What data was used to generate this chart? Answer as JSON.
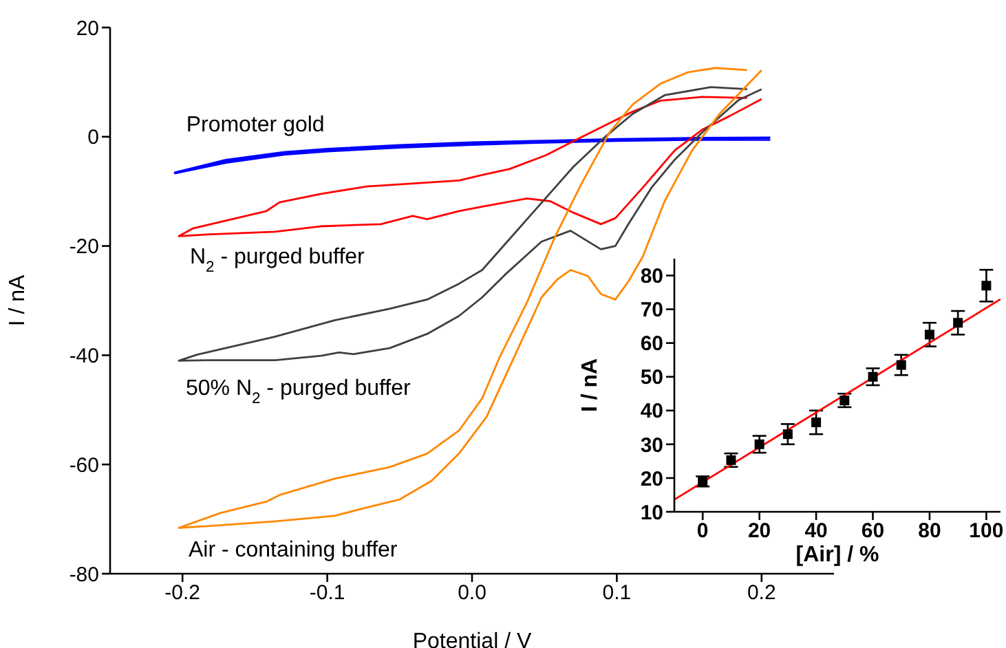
{
  "chart_data": [
    {
      "type": "line",
      "xlabel": "Potential / V",
      "ylabel": "I / nA",
      "xlim": [
        -0.25,
        0.25
      ],
      "ylim": [
        -80,
        20
      ],
      "xticks": [
        -0.2,
        -0.1,
        {
          "value": 0,
          "label": "0.0"
        },
        0.1,
        0.2
      ],
      "yticks": [
        -80,
        -60,
        -40,
        -20,
        0,
        20
      ],
      "series": [
        {
          "name": "Promoter gold",
          "color": "#0000ff",
          "x": [
            0.206,
            0.15,
            0.1,
            0.05,
            0,
            -0.05,
            -0.1,
            -0.13,
            -0.17,
            -0.205,
            -0.17,
            -0.13,
            -0.1,
            -0.05,
            0,
            0.05,
            0.1,
            0.15,
            0.206
          ],
          "values": [
            -0.2,
            -0.3,
            -0.5,
            -0.8,
            -1.1,
            -1.6,
            -2.3,
            -2.9,
            -4.3,
            -6.6,
            -4.7,
            -3.2,
            -2.6,
            -1.9,
            -1.4,
            -1.0,
            -0.7,
            -0.5,
            -0.5
          ]
        },
        {
          "name": "N$_{2}$ - purged buffer",
          "color": "#ff0000",
          "x": [
            0.19,
            0.159,
            0.13,
            0.111,
            0.095,
            0.07,
            0.051,
            0.026,
            0.007,
            -0.009,
            -0.073,
            -0.105,
            -0.133,
            -0.142,
            -0.193,
            -0.2025,
            -0.183,
            -0.136,
            -0.105,
            -0.063,
            -0.041,
            -0.031,
            -0.009,
            0.007,
            0.038,
            0.054,
            0.07,
            0.089,
            0.099,
            0.118,
            0.14,
            0.159,
            0.178,
            0.2
          ],
          "values": [
            7.1,
            7.3,
            6.6,
            4.6,
            2.5,
            -0.8,
            -3.4,
            -5.9,
            -7,
            -8,
            -9.1,
            -10.5,
            -12,
            -13.6,
            -16.8,
            -18.2,
            -17.9,
            -17.4,
            -16.4,
            -16,
            -14.5,
            -15.1,
            -13.6,
            -12.8,
            -11.3,
            -11.8,
            -13.9,
            -16,
            -14.9,
            -9.3,
            -2.5,
            1.3,
            3.8,
            6.9
          ]
        },
        {
          "name": "50% N$_{2}$ - purged buffer",
          "color": "#404040",
          "x": [
            0.19,
            0.165,
            0.133,
            0.111,
            0.092,
            0.07,
            0.038,
            0.007,
            -0.009,
            -0.031,
            -0.057,
            -0.095,
            -0.136,
            -0.19,
            -0.2025,
            -0.183,
            -0.136,
            -0.104,
            -0.092,
            -0.082,
            -0.057,
            -0.031,
            -0.009,
            0.007,
            0.023,
            0.048,
            0.068,
            0.089,
            0.099,
            0.108,
            0.124,
            0.14,
            0.159,
            0.184,
            0.2
          ],
          "values": [
            8.7,
            9.1,
            7.6,
            4.2,
            0,
            -5.5,
            -15.1,
            -24.4,
            -26.9,
            -29.8,
            -31.5,
            -33.6,
            -36.6,
            -39.9,
            -41,
            -40.9,
            -40.9,
            -40.1,
            -39.5,
            -39.8,
            -38.7,
            -36.1,
            -32.8,
            -29.4,
            -25.2,
            -19.2,
            -17.2,
            -20.6,
            -20,
            -16,
            -9.3,
            -4.2,
            0.8,
            6.7,
            8.7
          ]
        },
        {
          "name": "Air - containing buffer",
          "color": "#ff8800",
          "x": [
            0.19,
            0.168,
            0.149,
            0.13,
            0.111,
            0.095,
            0.076,
            0.057,
            0.038,
            0.019,
            0.007,
            -0.009,
            -0.031,
            -0.057,
            -0.095,
            -0.133,
            -0.142,
            -0.174,
            -0.2025,
            -0.183,
            -0.136,
            -0.095,
            -0.073,
            -0.05,
            -0.028,
            -0.009,
            0.01,
            0.029,
            0.048,
            0.059,
            0.068,
            0.08,
            0.089,
            0.099,
            0.108,
            0.118,
            0.133,
            0.152,
            0.171,
            0.2
          ],
          "values": [
            12.2,
            12.6,
            11.8,
            9.7,
            5.9,
            0.8,
            -8.4,
            -18.5,
            -30.3,
            -40.4,
            -47.9,
            -53.8,
            -58,
            -60.5,
            -62.6,
            -65.6,
            -66.8,
            -68.9,
            -71.6,
            -71.3,
            -70.4,
            -69.4,
            -67.9,
            -66.4,
            -63,
            -58,
            -51.3,
            -40.4,
            -29.4,
            -26.1,
            -24.4,
            -25.5,
            -28.8,
            -29.8,
            -26.5,
            -21.9,
            -11.8,
            -2.5,
            4.2,
            12.2
          ]
        }
      ]
    },
    {
      "type": "scatter",
      "xlabel": "[Air] / %",
      "ylabel": "I / nA",
      "xlim": [
        -10,
        105
      ],
      "ylim": [
        10,
        85
      ],
      "xticks": [
        0,
        20,
        40,
        60,
        80,
        100
      ],
      "yticks": [
        10,
        20,
        30,
        40,
        50,
        60,
        70,
        80
      ],
      "series": [
        {
          "marker": "square",
          "color": "#000000",
          "x": [
            0,
            10,
            20,
            30,
            40,
            50,
            60,
            70,
            80,
            90,
            100
          ],
          "values": [
            19,
            25.3,
            30,
            33,
            36.5,
            43,
            50,
            53.5,
            62.5,
            66,
            77
          ],
          "errors": [
            1.5,
            2,
            2.5,
            3,
            3.5,
            2,
            2.5,
            3,
            3.5,
            3.5,
            4.7
          ]
        },
        {
          "type": "line",
          "color": "#ff0000",
          "x": [
            -10,
            105
          ],
          "values": [
            13.6,
            73
          ]
        }
      ]
    }
  ]
}
